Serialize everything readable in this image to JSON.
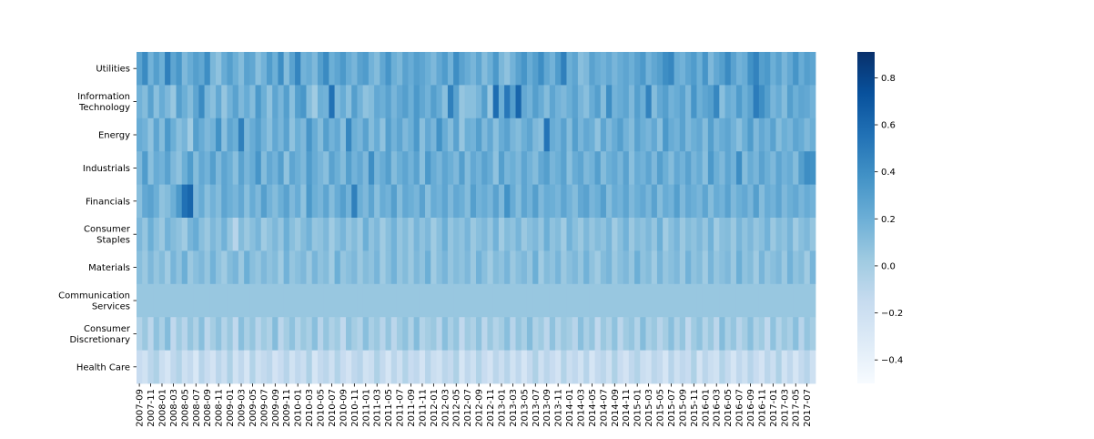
{
  "chart_data": {
    "type": "heatmap",
    "rows": [
      "Utilities",
      "Information Technology",
      "Energy",
      "Industrials",
      "Financials",
      "Consumer Staples",
      "Materials",
      "Communication Services",
      "Consumer Discretionary",
      "Health Care"
    ],
    "row_labels": [
      [
        "Utilities"
      ],
      [
        "Information",
        "Technology"
      ],
      [
        "Energy"
      ],
      [
        "Industrials"
      ],
      [
        "Financials"
      ],
      [
        "Consumer",
        "Staples"
      ],
      [
        "Materials"
      ],
      [
        "Communication",
        "Services"
      ],
      [
        "Consumer",
        "Discretionary"
      ],
      [
        "Health Care"
      ]
    ],
    "x_ticks": [
      "2007-09",
      "2007-11",
      "2008-01",
      "2008-03",
      "2008-05",
      "2008-07",
      "2008-09",
      "2008-11",
      "2009-01",
      "2009-03",
      "2009-05",
      "2009-07",
      "2009-09",
      "2009-11",
      "2010-01",
      "2010-03",
      "2010-05",
      "2010-07",
      "2010-09",
      "2010-11",
      "2011-01",
      "2011-03",
      "2011-05",
      "2011-07",
      "2011-09",
      "2011-11",
      "2012-01",
      "2012-03",
      "2012-05",
      "2012-07",
      "2012-09",
      "2012-11",
      "2013-01",
      "2013-03",
      "2013-05",
      "2013-07",
      "2013-09",
      "2013-11",
      "2014-01",
      "2014-03",
      "2014-05",
      "2014-07",
      "2014-09",
      "2014-11",
      "2015-01",
      "2015-03",
      "2015-05",
      "2015-07",
      "2015-09",
      "2015-11",
      "2016-01",
      "2016-03",
      "2016-05",
      "2016-07",
      "2016-09",
      "2016-11",
      "2017-01",
      "2017-03",
      "2017-05",
      "2017-07"
    ],
    "n_columns": 120,
    "values": [
      [
        0.28,
        0.42,
        0.18,
        0.3,
        0.2,
        0.48,
        0.26,
        0.35,
        0.14,
        0.22,
        0.3,
        0.25,
        0.4,
        0.15,
        0.08,
        0.22,
        0.3,
        0.2,
        0.12,
        0.28,
        0.25,
        0.1,
        0.18,
        0.32,
        0.2,
        0.4,
        0.12,
        0.28,
        0.45,
        0.18,
        0.22,
        0.14,
        0.3,
        0.42,
        0.2,
        0.26,
        0.34,
        0.22,
        0.16,
        0.28,
        0.32,
        0.18,
        0.12,
        0.25,
        0.36,
        0.2,
        0.15,
        0.28,
        0.22,
        0.3,
        0.26,
        0.2,
        0.14,
        0.24,
        0.32,
        0.18,
        0.4,
        0.28,
        0.22,
        0.16,
        0.26,
        0.12,
        0.2,
        0.34,
        0.15,
        0.08,
        0.18,
        0.28,
        0.36,
        0.22,
        0.3,
        0.4,
        0.25,
        0.18,
        0.32,
        0.48,
        0.2,
        0.26,
        0.1,
        0.14,
        0.28,
        0.22,
        0.18,
        0.24,
        0.16,
        0.22,
        0.26,
        0.2,
        0.28,
        0.34,
        0.18,
        0.25,
        0.3,
        0.4,
        0.44,
        0.22,
        0.18,
        0.26,
        0.32,
        0.2,
        0.36,
        0.14,
        0.24,
        0.3,
        0.42,
        0.28,
        0.18,
        0.22,
        0.38,
        0.46,
        0.3,
        0.34,
        0.2,
        0.28,
        0.16,
        0.24,
        0.36,
        0.22,
        0.3,
        0.26
      ],
      [
        0.18,
        0.12,
        0.28,
        0.1,
        0.22,
        0.14,
        0.05,
        0.3,
        0.2,
        0.12,
        0.26,
        0.42,
        0.16,
        0.1,
        0.24,
        0.06,
        0.18,
        0.28,
        0.14,
        0.22,
        0.12,
        0.34,
        0.2,
        0.08,
        0.26,
        0.16,
        0.3,
        0.1,
        0.3,
        0.35,
        0.12,
        0.02,
        0.2,
        0.18,
        0.56,
        0.14,
        0.22,
        0.1,
        0.3,
        0.18,
        0.08,
        0.12,
        0.24,
        0.2,
        0.28,
        0.16,
        0.24,
        0.3,
        0.2,
        0.34,
        0.25,
        0.18,
        0.3,
        0.22,
        0.1,
        0.48,
        0.28,
        0.06,
        0.1,
        0.1,
        0.16,
        0.3,
        0.05,
        0.58,
        0.2,
        0.52,
        0.3,
        0.62,
        0.24,
        0.18,
        0.3,
        0.22,
        0.12,
        0.26,
        0.18,
        0.14,
        0.2,
        0.28,
        0.16,
        0.1,
        0.22,
        0.3,
        0.12,
        0.4,
        0.18,
        0.22,
        0.26,
        0.14,
        0.3,
        0.2,
        0.46,
        0.12,
        0.24,
        0.3,
        0.18,
        0.22,
        0.28,
        0.14,
        0.36,
        0.2,
        0.26,
        0.3,
        0.44,
        0.1,
        0.22,
        0.18,
        0.32,
        0.2,
        0.28,
        0.5,
        0.4,
        0.3,
        0.16,
        0.22,
        0.12,
        0.3,
        0.2,
        0.26,
        0.24,
        0.18
      ],
      [
        0.22,
        0.18,
        0.08,
        0.26,
        0.12,
        0.34,
        0.2,
        0.1,
        0.16,
        0.02,
        0.3,
        0.22,
        0.14,
        0.18,
        0.38,
        0.1,
        0.26,
        0.2,
        0.48,
        0.14,
        0.22,
        0.3,
        0.18,
        0.1,
        0.24,
        0.16,
        0.28,
        0.08,
        0.2,
        0.14,
        0.36,
        0.22,
        0.12,
        0.3,
        0.18,
        0.24,
        0.1,
        0.44,
        0.2,
        0.16,
        0.28,
        0.12,
        0.22,
        0.08,
        0.3,
        0.18,
        0.26,
        0.14,
        0.2,
        0.34,
        0.1,
        0.24,
        0.16,
        0.38,
        0.22,
        0.12,
        0.28,
        0.06,
        0.2,
        0.18,
        0.3,
        0.14,
        0.24,
        0.1,
        0.22,
        0.28,
        0.16,
        0.12,
        0.2,
        0.26,
        0.14,
        0.1,
        0.54,
        0.22,
        0.18,
        0.28,
        0.12,
        0.3,
        0.16,
        0.24,
        0.2,
        0.08,
        0.26,
        0.14,
        0.22,
        0.3,
        0.18,
        0.12,
        0.28,
        0.2,
        0.16,
        0.24,
        0.1,
        0.34,
        0.22,
        0.18,
        0.28,
        0.14,
        0.2,
        0.24,
        0.12,
        0.3,
        0.16,
        0.22,
        0.26,
        0.18,
        0.1,
        0.2,
        0.32,
        0.14,
        0.24,
        0.18,
        0.28,
        0.12,
        0.2,
        0.16,
        0.26,
        0.22,
        0.14,
        0.2
      ],
      [
        0.14,
        0.32,
        0.1,
        0.22,
        0.18,
        0.28,
        0.14,
        0.08,
        0.2,
        0.32,
        0.12,
        0.24,
        0.18,
        0.3,
        0.14,
        0.26,
        0.2,
        0.1,
        0.28,
        0.16,
        0.22,
        0.36,
        0.12,
        0.24,
        0.18,
        0.3,
        0.08,
        0.26,
        0.2,
        0.14,
        0.32,
        0.22,
        0.16,
        0.1,
        0.28,
        0.2,
        0.12,
        0.3,
        0.18,
        0.24,
        0.14,
        0.4,
        0.16,
        0.22,
        0.3,
        0.12,
        0.2,
        0.26,
        0.18,
        0.28,
        0.1,
        0.34,
        0.22,
        0.16,
        0.26,
        0.2,
        0.14,
        0.3,
        0.12,
        0.24,
        0.18,
        0.28,
        0.22,
        0.08,
        0.3,
        0.16,
        0.2,
        0.14,
        0.26,
        0.18,
        0.12,
        0.24,
        0.3,
        0.16,
        0.2,
        0.28,
        0.1,
        0.22,
        0.26,
        0.14,
        0.18,
        0.3,
        0.12,
        0.2,
        0.24,
        0.16,
        0.28,
        0.1,
        0.22,
        0.18,
        0.26,
        0.14,
        0.3,
        0.2,
        0.12,
        0.24,
        0.18,
        0.28,
        0.16,
        0.22,
        0.1,
        0.34,
        0.2,
        0.14,
        0.26,
        0.18,
        0.4,
        0.12,
        0.22,
        0.16,
        0.28,
        0.2,
        0.14,
        0.26,
        0.18,
        0.22,
        0.12,
        0.3,
        0.4,
        0.38
      ],
      [
        0.1,
        0.24,
        0.28,
        0.2,
        0.08,
        0.12,
        0.2,
        0.34,
        0.56,
        0.62,
        0.14,
        0.22,
        0.1,
        0.18,
        0.12,
        0.26,
        0.2,
        0.16,
        0.24,
        0.1,
        0.22,
        0.14,
        0.3,
        0.18,
        0.12,
        0.2,
        0.28,
        0.14,
        0.22,
        0.08,
        0.34,
        0.2,
        0.16,
        0.26,
        0.12,
        0.22,
        0.3,
        0.18,
        0.48,
        0.2,
        0.14,
        0.26,
        0.1,
        0.22,
        0.18,
        0.3,
        0.12,
        0.24,
        0.2,
        0.16,
        0.28,
        0.1,
        0.22,
        0.18,
        0.26,
        0.14,
        0.24,
        0.2,
        0.12,
        0.3,
        0.18,
        0.22,
        0.16,
        0.28,
        0.14,
        0.38,
        0.22,
        0.12,
        0.26,
        0.18,
        0.3,
        0.14,
        0.22,
        0.2,
        0.16,
        0.26,
        0.18,
        0.12,
        0.24,
        0.28,
        0.16,
        0.2,
        0.3,
        0.12,
        0.22,
        0.18,
        0.26,
        0.14,
        0.2,
        0.24,
        0.16,
        0.28,
        0.12,
        0.22,
        0.18,
        0.3,
        0.14,
        0.24,
        0.2,
        0.16,
        0.26,
        0.12,
        0.22,
        0.18,
        0.28,
        0.14,
        0.2,
        0.24,
        0.16,
        0.3,
        0.12,
        0.22,
        0.18,
        0.26,
        0.14,
        0.2,
        0.24,
        0.16,
        0.22,
        0.18
      ],
      [
        0.14,
        0.06,
        0.2,
        0.1,
        0.04,
        0.18,
        0.12,
        0.08,
        0.02,
        0.16,
        0.22,
        0.1,
        0.04,
        0.14,
        0.08,
        0.18,
        0.06,
        -0.08,
        0.12,
        0.04,
        0.1,
        0.16,
        0.02,
        0.08,
        0.14,
        0.06,
        0.2,
        0.1,
        0.04,
        0.12,
        0.18,
        0.06,
        0.08,
        0.14,
        0.02,
        0.1,
        0.16,
        0.06,
        0.12,
        0.04,
        0.2,
        0.08,
        0.14,
        0.02,
        0.1,
        0.18,
        0.06,
        0.12,
        0.04,
        0.16,
        0.08,
        0.14,
        0.02,
        0.1,
        0.2,
        0.06,
        0.12,
        0.08,
        0.16,
        0.04,
        0.1,
        0.14,
        0.06,
        0.18,
        0.02,
        0.12,
        0.08,
        0.16,
        0.04,
        0.1,
        0.14,
        0.06,
        0.2,
        0.08,
        0.12,
        0.02,
        0.18,
        0.1,
        0.04,
        0.14,
        0.06,
        0.12,
        0.08,
        0.16,
        0.02,
        0.1,
        0.18,
        0.04,
        0.12,
        0.08,
        0.14,
        0.06,
        0.2,
        0.02,
        0.1,
        0.16,
        0.04,
        0.12,
        0.08,
        0.14,
        0.06,
        0.18,
        0.02,
        0.1,
        0.12,
        0.04,
        0.16,
        0.08,
        0.14,
        0.06,
        0.1,
        0.18,
        0.04,
        0.12,
        0.08,
        0.16,
        0.02,
        0.1,
        0.14,
        0.06
      ],
      [
        0.1,
        0.04,
        0.14,
        0.06,
        0.12,
        0.02,
        0.16,
        0.08,
        0.2,
        0.04,
        0.1,
        0.14,
        0.06,
        0.18,
        0.08,
        0.02,
        0.12,
        0.16,
        0.04,
        0.2,
        0.1,
        0.06,
        0.14,
        0.08,
        0.12,
        0.02,
        0.18,
        0.06,
        0.1,
        0.14,
        0.04,
        0.16,
        0.08,
        0.12,
        0.02,
        0.2,
        0.06,
        0.1,
        0.14,
        0.04,
        0.12,
        0.08,
        0.16,
        0.02,
        0.1,
        0.18,
        0.06,
        0.12,
        0.04,
        0.14,
        0.08,
        0.2,
        0.02,
        0.1,
        0.16,
        0.06,
        0.12,
        0.08,
        0.14,
        0.04,
        0.18,
        0.1,
        0.02,
        0.12,
        0.08,
        0.16,
        0.04,
        0.1,
        0.14,
        0.06,
        0.2,
        0.02,
        0.12,
        0.08,
        0.16,
        0.04,
        0.1,
        0.14,
        0.06,
        0.18,
        0.08,
        0.02,
        0.12,
        0.16,
        0.04,
        0.1,
        0.14,
        0.06,
        0.2,
        0.08,
        0.12,
        0.02,
        0.16,
        0.06,
        0.1,
        0.14,
        0.04,
        0.18,
        0.08,
        0.12,
        0.02,
        0.16,
        0.06,
        0.1,
        0.14,
        0.04,
        0.2,
        0.08,
        0.12,
        0.02,
        0.16,
        0.06,
        0.1,
        0.14,
        0.04,
        0.18,
        0.08,
        0.12,
        0.02,
        0.16
      ],
      [
        0.05,
        0.05,
        0.05,
        0.05,
        0.05,
        0.05,
        0.05,
        0.05,
        0.05,
        0.05,
        0.05,
        0.05,
        0.05,
        0.05,
        0.05,
        0.05,
        0.05,
        0.05,
        0.05,
        0.05,
        0.05,
        0.05,
        0.05,
        0.05,
        0.05,
        0.05,
        0.05,
        0.05,
        0.05,
        0.05,
        0.05,
        0.05,
        0.05,
        0.05,
        0.05,
        0.05,
        0.05,
        0.05,
        0.05,
        0.05,
        0.05,
        0.05,
        0.05,
        0.05,
        0.05,
        0.05,
        0.05,
        0.05,
        0.05,
        0.05,
        0.05,
        0.05,
        0.05,
        0.05,
        0.05,
        0.05,
        0.05,
        0.05,
        0.05,
        0.05,
        0.05,
        0.05,
        0.05,
        0.05,
        0.05,
        0.05,
        0.05,
        0.05,
        0.05,
        0.05,
        0.05,
        0.05,
        0.05,
        0.05,
        0.05,
        0.05,
        0.05,
        0.05,
        0.05,
        0.05,
        0.05,
        0.05,
        0.05,
        0.05,
        0.05,
        0.05,
        0.05,
        0.05,
        0.05,
        0.05,
        0.05,
        0.05,
        0.05,
        0.05,
        0.05,
        0.05,
        0.05,
        0.05,
        0.05,
        0.05,
        0.05,
        0.05,
        0.05,
        0.05,
        0.05,
        0.05,
        0.05,
        0.05,
        0.05,
        0.05,
        0.05,
        0.05,
        0.05,
        0.05,
        0.05,
        0.05,
        0.05,
        0.05,
        0.05,
        0.05
      ],
      [
        -0.06,
        0.04,
        -0.1,
        0.08,
        -0.02,
        0.12,
        -0.12,
        0.02,
        -0.08,
        0.06,
        -0.04,
        0.1,
        -0.1,
        0.0,
        0.08,
        -0.06,
        0.04,
        -0.12,
        0.1,
        -0.02,
        0.06,
        -0.08,
        0.02,
        -0.04,
        0.12,
        -0.1,
        0.0,
        0.08,
        -0.06,
        0.04,
        -0.02,
        0.1,
        -0.08,
        0.06,
        -0.04,
        0.02,
        -0.12,
        0.08,
        0.0,
        -0.06,
        0.1,
        -0.02,
        0.04,
        -0.08,
        0.06,
        -0.1,
        0.02,
        0.08,
        -0.04,
        0.12,
        -0.06,
        0.0,
        0.04,
        -0.08,
        0.1,
        -0.02,
        0.06,
        -0.12,
        0.02,
        -0.04,
        0.08,
        -0.1,
        0.04,
        -0.06,
        0.0,
        0.1,
        -0.08,
        0.06,
        -0.02,
        0.12,
        -0.04,
        0.02,
        -0.1,
        0.08,
        -0.06,
        0.04,
        0.0,
        -0.08,
        0.1,
        -0.02,
        0.06,
        -0.12,
        0.04,
        -0.04,
        0.08,
        -0.1,
        0.02,
        0.06,
        -0.06,
        0.12,
        -0.02,
        0.04,
        -0.08,
        0.0,
        0.1,
        -0.04,
        0.06,
        -0.12,
        0.02,
        0.08,
        -0.06,
        0.04,
        -0.1,
        0.12,
        -0.02,
        0.06,
        -0.08,
        0.0,
        0.1,
        -0.04,
        0.02,
        -0.12,
        0.08,
        -0.06,
        0.04,
        -0.02,
        0.1,
        -0.08,
        0.06,
        0.0
      ],
      [
        -0.16,
        -0.22,
        -0.1,
        -0.04,
        -0.18,
        -0.26,
        -0.12,
        -0.06,
        -0.2,
        -0.14,
        -0.28,
        -0.08,
        -0.16,
        -0.24,
        -0.1,
        -0.18,
        -0.04,
        -0.22,
        -0.12,
        -0.26,
        -0.06,
        -0.2,
        -0.14,
        -0.1,
        -0.24,
        -0.16,
        -0.08,
        -0.22,
        -0.12,
        -0.18,
        -0.04,
        -0.26,
        -0.14,
        -0.1,
        -0.2,
        -0.06,
        -0.16,
        -0.24,
        -0.12,
        -0.08,
        -0.22,
        -0.18,
        -0.04,
        -0.14,
        -0.26,
        -0.1,
        -0.2,
        -0.06,
        -0.16,
        -0.12,
        -0.24,
        -0.08,
        -0.18,
        -0.22,
        -0.1,
        -0.14,
        -0.04,
        -0.26,
        -0.12,
        -0.2,
        -0.06,
        -0.16,
        -0.24,
        -0.1,
        -0.18,
        -0.08,
        -0.22,
        -0.12,
        -0.26,
        -0.14,
        -0.04,
        -0.2,
        -0.1,
        -0.16,
        -0.24,
        -0.06,
        -0.18,
        -0.12,
        -0.22,
        -0.08,
        -0.26,
        -0.14,
        -0.1,
        -0.2,
        -0.04,
        -0.16,
        -0.24,
        -0.12,
        -0.06,
        -0.18,
        -0.22,
        -0.1,
        -0.14,
        -0.26,
        -0.08,
        -0.2,
        -0.12,
        -0.16,
        -0.04,
        -0.24,
        -0.1,
        -0.18,
        -0.22,
        -0.06,
        -0.14,
        -0.26,
        -0.12,
        -0.2,
        -0.08,
        -0.16,
        -0.24,
        -0.1,
        -0.18,
        -0.04,
        -0.22,
        -0.12,
        -0.26,
        -0.14,
        -0.08,
        -0.2
      ]
    ],
    "vmin": -0.5,
    "vmax": 0.91,
    "colorbar_ticks": [
      0.8,
      0.6,
      0.4,
      0.2,
      0.0,
      -0.2,
      -0.4
    ],
    "colorbar_tick_labels": [
      "0.8",
      "0.6",
      "0.4",
      "0.2",
      "0.0",
      "−0.2",
      "−0.4"
    ],
    "colormap": "Blues",
    "colormap_stops": [
      "#f7fbff",
      "#deebf7",
      "#c6dbef",
      "#9ecae1",
      "#6baed6",
      "#4292c6",
      "#2171b5",
      "#08519c",
      "#08306b"
    ],
    "title": "",
    "xlabel": "",
    "ylabel": "",
    "grid": false
  }
}
